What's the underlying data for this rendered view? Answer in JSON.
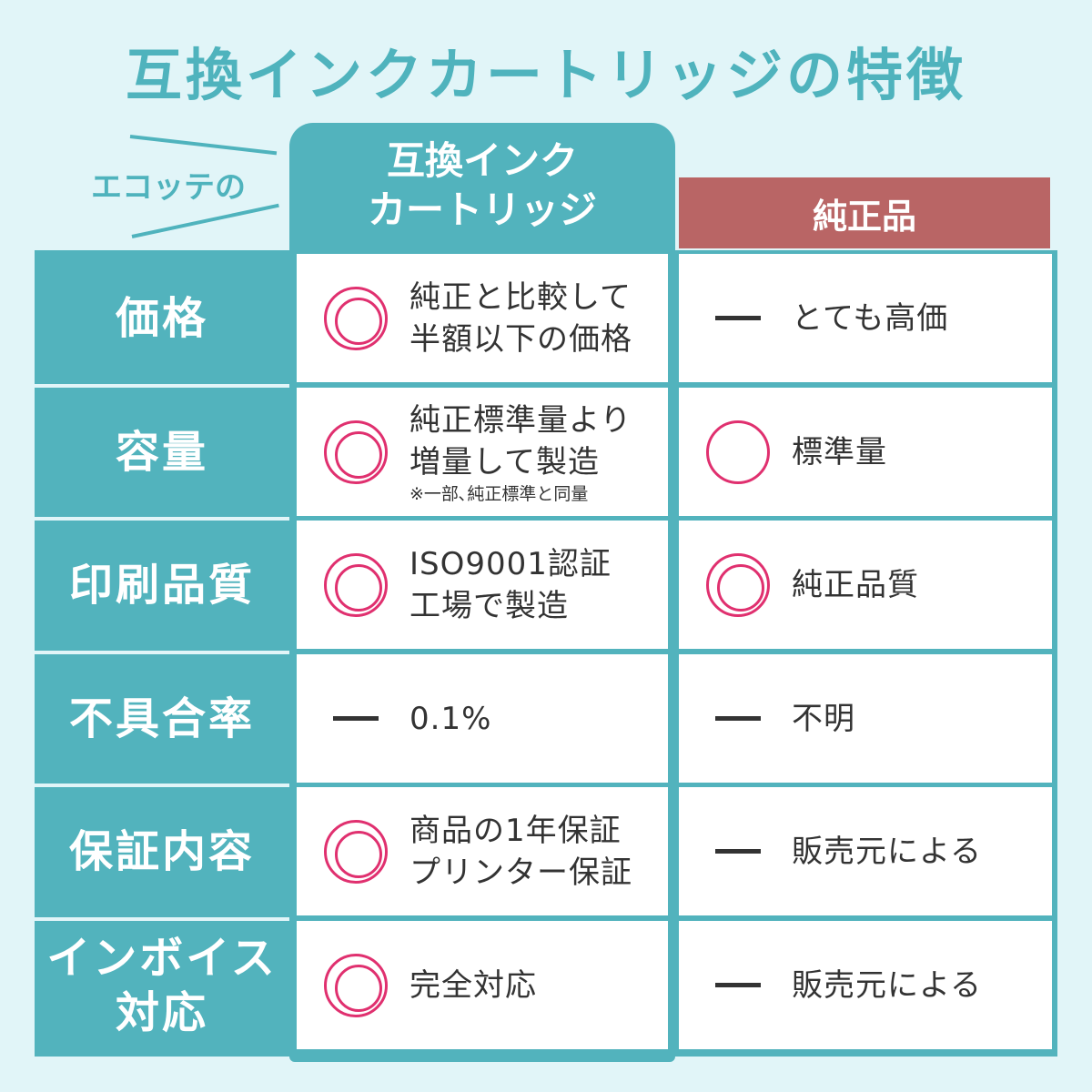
{
  "title": "互換インクカートリッジの特徴",
  "header": {
    "ecotte": "エコッテの",
    "compat_line1": "互換インク",
    "compat_line2": "カートリッジ",
    "genuine": "純正品"
  },
  "colors": {
    "teal": "#52b3bd",
    "red": "#b96565",
    "mark": "#e0306f",
    "background": "#e1f5f8"
  },
  "rows": [
    {
      "label": "価格",
      "compat": {
        "mark": "double-circle",
        "lines": [
          "純正と比較して",
          "半額以下の価格"
        ]
      },
      "genuine": {
        "mark": "dash",
        "text": "とても高価"
      }
    },
    {
      "label": "容量",
      "compat": {
        "mark": "double-circle",
        "lines": [
          "純正標準量より",
          "増量して製造"
        ],
        "note": "※一部､純正標準と同量"
      },
      "genuine": {
        "mark": "circle",
        "text": "標準量"
      }
    },
    {
      "label": "印刷品質",
      "compat": {
        "mark": "double-circle",
        "lines": [
          "ISO9001認証",
          "工場で製造"
        ]
      },
      "genuine": {
        "mark": "double-circle",
        "text": "純正品質"
      }
    },
    {
      "label": "不具合率",
      "compat": {
        "mark": "dash",
        "lines": [
          "0.1%"
        ]
      },
      "genuine": {
        "mark": "dash",
        "text": "不明"
      }
    },
    {
      "label": "保証内容",
      "compat": {
        "mark": "double-circle",
        "lines": [
          "商品の1年保証",
          "プリンター保証"
        ]
      },
      "genuine": {
        "mark": "dash",
        "text": "販売元による"
      }
    },
    {
      "label_line1": "インボイス",
      "label_line2": "対応",
      "compat": {
        "mark": "double-circle",
        "lines": [
          "完全対応"
        ]
      },
      "genuine": {
        "mark": "dash",
        "text": "販売元による"
      }
    }
  ]
}
